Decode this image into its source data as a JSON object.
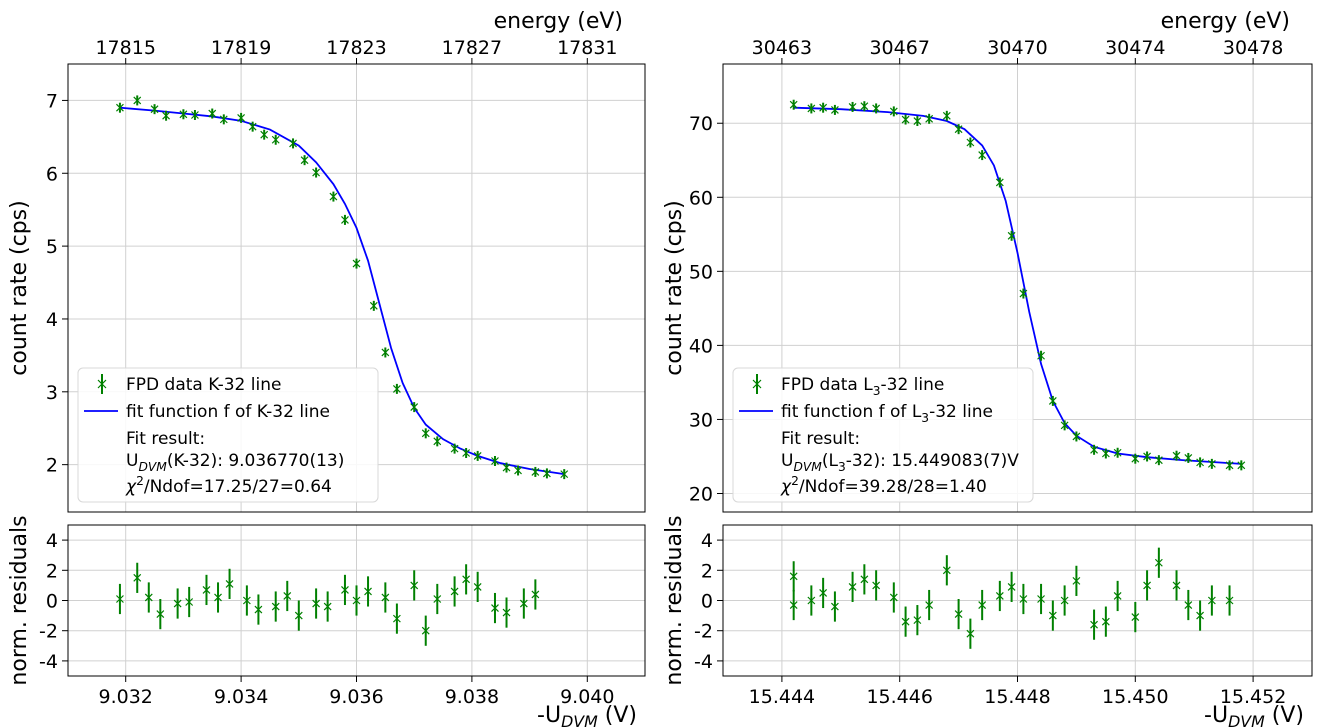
{
  "chart_data": [
    {
      "type": "scatter",
      "panel": "left",
      "top_axis": {
        "label": "energy (eV)",
        "ticks": [
          "17815",
          "17819",
          "17823",
          "17827",
          "17831"
        ],
        "tick_x": [
          9.032,
          9.034,
          9.036,
          9.038,
          9.04
        ]
      },
      "main": {
        "ylabel": "count rate (cps)",
        "xlim": [
          9.031,
          9.041
        ],
        "ylim": [
          1.35,
          7.5
        ],
        "yticks": [
          2,
          3,
          4,
          5,
          6,
          7
        ],
        "grid": true,
        "series": [
          {
            "name": "FPD data K-32 line",
            "kind": "errorbar",
            "color": "#008000",
            "x": [
              9.0319,
              9.0322,
              9.0325,
              9.0327,
              9.033,
              9.0332,
              9.0335,
              9.0337,
              9.034,
              9.0342,
              9.0344,
              9.0346,
              9.0349,
              9.0351,
              9.0353,
              9.0356,
              9.0358,
              9.036,
              9.0363,
              9.0365,
              9.0367,
              9.037,
              9.0372,
              9.0374,
              9.0377,
              9.0379,
              9.0381,
              9.0384,
              9.0386,
              9.0388,
              9.0391,
              9.0393,
              9.0396
            ],
            "y": [
              6.9,
              7.0,
              6.88,
              6.79,
              6.81,
              6.8,
              6.82,
              6.74,
              6.76,
              6.64,
              6.53,
              6.46,
              6.41,
              6.18,
              6.01,
              5.68,
              5.36,
              4.76,
              4.18,
              3.54,
              3.04,
              2.79,
              2.43,
              2.32,
              2.22,
              2.16,
              2.12,
              2.05,
              1.96,
              1.92,
              1.9,
              1.88,
              1.87
            ]
          },
          {
            "name": "fit function f of K-32 line",
            "kind": "line",
            "color": "#0000ff",
            "x": [
              9.0319,
              9.0325,
              9.033,
              9.0335,
              9.034,
              9.0345,
              9.035,
              9.0353,
              9.0356,
              9.0358,
              9.036,
              9.0362,
              9.0364,
              9.0366,
              9.0368,
              9.037,
              9.0372,
              9.0375,
              9.0378,
              9.0381,
              9.0385,
              9.039,
              9.0396
            ],
            "y": [
              6.9,
              6.86,
              6.82,
              6.78,
              6.72,
              6.6,
              6.38,
              6.15,
              5.85,
              5.58,
              5.25,
              4.8,
              4.2,
              3.6,
              3.12,
              2.78,
              2.55,
              2.35,
              2.22,
              2.12,
              2.02,
              1.94,
              1.87
            ]
          }
        ],
        "legend": {
          "position": "lower-left",
          "items": [
            "FPD data K-32 line",
            "fit function f of K-32 line"
          ],
          "fit_title": "Fit result:",
          "fit_udvm_line": "U_DVM(K-32): 9.036770(13)",
          "fit_chi_line": "χ²/Ndof=17.25/27=0.64"
        }
      },
      "residuals": {
        "ylabel": "norm. residuals",
        "ylim": [
          -5,
          5
        ],
        "yticks": [
          4,
          2,
          0,
          -2,
          -4
        ],
        "ytick_labels": [
          "4",
          "2",
          "0",
          "-2",
          "-4"
        ],
        "xlabel": "-U_DVM (V)",
        "xticks": [
          9.032,
          9.034,
          9.036,
          9.038,
          9.04
        ],
        "xtick_labels": [
          "9.032",
          "9.034",
          "9.036",
          "9.038",
          "9.040"
        ],
        "color": "#008000",
        "values": [
          0.1,
          1.5,
          0.2,
          -0.9,
          -0.2,
          -0.1,
          0.7,
          0.2,
          1.1,
          0.0,
          -0.6,
          -0.4,
          0.3,
          -1.0,
          -0.2,
          -0.4,
          0.7,
          0.0,
          0.6,
          0.2,
          -1.2,
          1.0,
          -2.0,
          0.1,
          0.6,
          1.4,
          0.9,
          -0.5,
          -0.8,
          -0.2,
          0.4
        ],
        "x": [
          9.0319,
          9.0322,
          9.0324,
          9.0326,
          9.0329,
          9.0331,
          9.0334,
          9.0336,
          9.0338,
          9.0341,
          9.0343,
          9.0346,
          9.0348,
          9.035,
          9.0353,
          9.0355,
          9.0358,
          9.036,
          9.0362,
          9.0365,
          9.0367,
          9.037,
          9.0372,
          9.0374,
          9.0377,
          9.0379,
          9.0381,
          9.0384,
          9.0386,
          9.0389,
          9.0391
        ]
      }
    },
    {
      "type": "scatter",
      "panel": "right",
      "top_axis": {
        "label": "energy (eV)",
        "ticks": [
          "30463",
          "30467",
          "30470",
          "30474",
          "30478"
        ],
        "tick_x": [
          15.444,
          15.446,
          15.448,
          15.45,
          15.452
        ]
      },
      "main": {
        "ylabel": "count rate (cps)",
        "xlim": [
          15.443,
          15.453
        ],
        "ylim": [
          17.5,
          78
        ],
        "yticks": [
          20,
          30,
          40,
          50,
          60,
          70
        ],
        "grid": true,
        "series": [
          {
            "name": "FPD data L3-32 line",
            "kind": "errorbar",
            "color": "#008000",
            "x": [
              15.4442,
              15.4445,
              15.4447,
              15.4449,
              15.4452,
              15.4454,
              15.4456,
              15.4459,
              15.4461,
              15.4463,
              15.4465,
              15.4468,
              15.447,
              15.4472,
              15.4474,
              15.4477,
              15.4479,
              15.4481,
              15.4484,
              15.4486,
              15.4488,
              15.449,
              15.4493,
              15.4495,
              15.4497,
              15.45,
              15.4502,
              15.4504,
              15.4507,
              15.4509,
              15.4511,
              15.4513,
              15.4516,
              15.4518
            ],
            "y": [
              72.5,
              72.0,
              72.1,
              71.8,
              72.2,
              72.3,
              72.0,
              71.6,
              70.5,
              70.3,
              70.6,
              71.0,
              69.2,
              67.4,
              65.7,
              62.0,
              54.8,
              47.0,
              38.6,
              32.5,
              29.2,
              27.7,
              25.9,
              25.4,
              25.5,
              24.7,
              25.0,
              24.5,
              25.1,
              24.8,
              24.2,
              24.0,
              23.8,
              23.8
            ],
            "_note_xy_mismatch_fix": ""
          },
          {
            "name": "fit function f of L3-32 line",
            "kind": "line",
            "color": "#0000ff",
            "x": [
              15.4442,
              15.445,
              15.4458,
              15.4464,
              15.4468,
              15.4471,
              15.4474,
              15.4476,
              15.4478,
              15.448,
              15.4482,
              15.4484,
              15.4486,
              15.4488,
              15.449,
              15.4493,
              15.4497,
              15.4502,
              15.4508,
              15.4514,
              15.4518
            ],
            "y": [
              72.1,
              71.9,
              71.5,
              71.0,
              70.3,
              69.2,
              67.0,
              64.3,
              59.5,
              52.5,
              44.5,
              37.5,
              32.5,
              29.5,
              27.8,
              26.3,
              25.4,
              24.9,
              24.5,
              24.2,
              24.0
            ]
          }
        ],
        "legend": {
          "position": "lower-left",
          "items": [
            "FPD data L3-32 line",
            "fit function f of L3-32 line"
          ],
          "fit_title": "Fit result:",
          "fit_udvm_line": "U_DVM(L3-32): 15.449083(7)V",
          "fit_chi_line": "χ²/Ndof=39.28/28=1.40"
        }
      },
      "residuals": {
        "ylabel": "norm. residuals",
        "ylim": [
          -5,
          5
        ],
        "yticks": [
          4,
          2,
          0,
          -2,
          -4
        ],
        "ytick_labels": [
          "4",
          "2",
          "0",
          "-2",
          "-4"
        ],
        "xlabel": "-U_DVM (V)",
        "xticks": [
          15.444,
          15.446,
          15.448,
          15.45,
          15.452
        ],
        "xtick_labels": [
          "15.444",
          "15.446",
          "15.448",
          "15.450",
          "15.452"
        ],
        "color": "#008000",
        "x": [
          15.4442,
          15.4442,
          15.4445,
          15.4447,
          15.4449,
          15.4452,
          15.4454,
          15.4456,
          15.4459,
          15.4461,
          15.4463,
          15.4465,
          15.4468,
          15.447,
          15.4472,
          15.4474,
          15.4477,
          15.4479,
          15.4481,
          15.4484,
          15.4486,
          15.4488,
          15.449,
          15.4493,
          15.4495,
          15.4497,
          15.45,
          15.4502,
          15.4504,
          15.4507,
          15.4509,
          15.4511,
          15.4513,
          15.4516
        ],
        "values": [
          1.6,
          -0.3,
          0.0,
          0.5,
          -0.4,
          0.9,
          1.4,
          1.0,
          0.2,
          -1.4,
          -1.3,
          -0.3,
          2.0,
          -0.9,
          -2.2,
          -0.3,
          0.3,
          0.9,
          0.1,
          0.1,
          -1.0,
          0.0,
          1.3,
          -1.6,
          -1.4,
          0.3,
          -1.1,
          1.0,
          2.5,
          1.0,
          -0.3,
          -1.0,
          0.0,
          0.0
        ]
      }
    }
  ]
}
